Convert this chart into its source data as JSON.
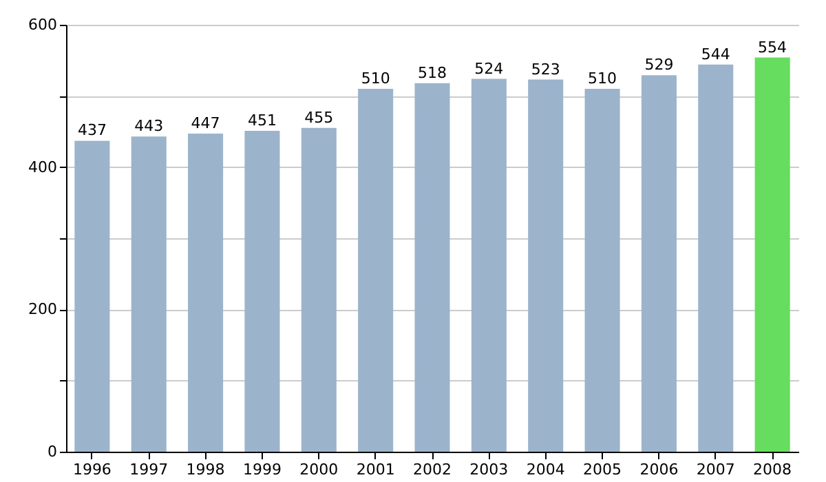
{
  "chart_data": {
    "type": "bar",
    "categories": [
      "1996",
      "1997",
      "1998",
      "1999",
      "2000",
      "2001",
      "2002",
      "2003",
      "2004",
      "2005",
      "2006",
      "2007",
      "2008"
    ],
    "values": [
      437,
      443,
      447,
      451,
      455,
      510,
      518,
      524,
      523,
      510,
      529,
      544,
      554
    ],
    "colors": [
      "#9cb3cc",
      "#9cb3cc",
      "#9cb3cc",
      "#9cb3cc",
      "#9cb3cc",
      "#9cb3cc",
      "#9cb3cc",
      "#9cb3cc",
      "#9cb3cc",
      "#9cb3cc",
      "#9cb3cc",
      "#9cb3cc",
      "#66dd5e"
    ],
    "ylim": [
      0,
      600
    ],
    "yticks": [
      0,
      {
        "value": 100,
        "label": null
      },
      200,
      {
        "value": 300,
        "label": null
      },
      400,
      {
        "value": 500,
        "label": null
      },
      600
    ],
    "grid": "y",
    "data_labels": true
  }
}
